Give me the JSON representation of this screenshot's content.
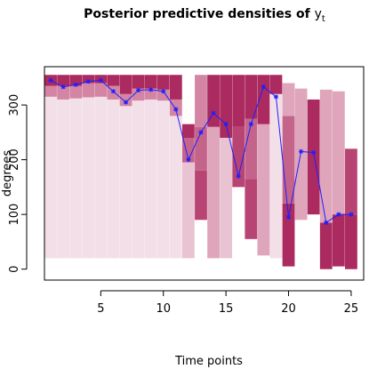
{
  "chart_data": {
    "type": "bar",
    "title": "Posterior predictive densities of ",
    "title_symbol": "y",
    "title_subscript": "t",
    "xlabel": "Time points",
    "ylabel": "degrees",
    "xlim": [
      0.5,
      26
    ],
    "ylim": [
      -20,
      370
    ],
    "x_ticks": [
      5,
      10,
      15,
      20,
      25
    ],
    "y_ticks": [
      0,
      100,
      200,
      300
    ],
    "grid": false,
    "colors": {
      "line": "#1f1fff",
      "marker": "#1f1fff",
      "band_shades": [
        "#f3dfe7",
        "#e9c3d1",
        "#dfa5bb",
        "#d385a3",
        "#c5648b",
        "#b84474",
        "#ab2a5f"
      ]
    },
    "bands": [
      {
        "x": 1,
        "segments": [
          [
            20,
            315,
            0
          ],
          [
            315,
            335,
            3
          ],
          [
            335,
            355,
            6
          ]
        ]
      },
      {
        "x": 2,
        "segments": [
          [
            20,
            310,
            0
          ],
          [
            310,
            335,
            3
          ],
          [
            335,
            355,
            6
          ]
        ]
      },
      {
        "x": 3,
        "segments": [
          [
            20,
            312,
            0
          ],
          [
            312,
            335,
            3
          ],
          [
            335,
            355,
            6
          ]
        ]
      },
      {
        "x": 4,
        "segments": [
          [
            20,
            314,
            0
          ],
          [
            314,
            340,
            3
          ],
          [
            340,
            355,
            6
          ]
        ]
      },
      {
        "x": 5,
        "segments": [
          [
            20,
            315,
            0
          ],
          [
            315,
            340,
            3
          ],
          [
            340,
            355,
            6
          ]
        ]
      },
      {
        "x": 6,
        "segments": [
          [
            20,
            310,
            0
          ],
          [
            310,
            335,
            3
          ],
          [
            335,
            355,
            6
          ]
        ]
      },
      {
        "x": 7,
        "segments": [
          [
            20,
            298,
            0
          ],
          [
            298,
            320,
            3
          ],
          [
            320,
            355,
            6
          ]
        ]
      },
      {
        "x": 8,
        "segments": [
          [
            20,
            308,
            0
          ],
          [
            308,
            330,
            3
          ],
          [
            330,
            355,
            6
          ]
        ]
      },
      {
        "x": 9,
        "segments": [
          [
            20,
            310,
            0
          ],
          [
            310,
            330,
            3
          ],
          [
            330,
            355,
            6
          ]
        ]
      },
      {
        "x": 10,
        "segments": [
          [
            20,
            308,
            0
          ],
          [
            308,
            328,
            3
          ],
          [
            328,
            355,
            6
          ]
        ]
      },
      {
        "x": 11,
        "segments": [
          [
            20,
            280,
            0
          ],
          [
            280,
            310,
            3
          ],
          [
            310,
            355,
            6
          ]
        ]
      },
      {
        "x": 12,
        "segments": [
          [
            20,
            195,
            1
          ],
          [
            195,
            240,
            4
          ],
          [
            240,
            265,
            6
          ]
        ]
      },
      {
        "x": 13,
        "segments": [
          [
            90,
            180,
            5
          ],
          [
            180,
            260,
            4
          ],
          [
            260,
            355,
            3
          ]
        ]
      },
      {
        "x": 14,
        "segments": [
          [
            20,
            260,
            2
          ],
          [
            260,
            355,
            6
          ]
        ]
      },
      {
        "x": 15,
        "segments": [
          [
            20,
            240,
            1
          ],
          [
            240,
            355,
            6
          ]
        ]
      },
      {
        "x": 16,
        "segments": [
          [
            150,
            260,
            5
          ],
          [
            260,
            355,
            6
          ]
        ]
      },
      {
        "x": 17,
        "segments": [
          [
            55,
            165,
            5
          ],
          [
            165,
            275,
            4
          ],
          [
            275,
            355,
            6
          ]
        ]
      },
      {
        "x": 18,
        "segments": [
          [
            25,
            265,
            2
          ],
          [
            265,
            355,
            6
          ]
        ]
      },
      {
        "x": 19,
        "segments": [
          [
            20,
            320,
            0
          ],
          [
            320,
            355,
            6
          ]
        ]
      },
      {
        "x": 20,
        "segments": [
          [
            5,
            120,
            6
          ],
          [
            120,
            280,
            4
          ],
          [
            280,
            340,
            2
          ]
        ]
      },
      {
        "x": 21,
        "segments": [
          [
            90,
            330,
            2
          ]
        ]
      },
      {
        "x": 22,
        "segments": [
          [
            100,
            310,
            6
          ]
        ]
      },
      {
        "x": 23,
        "segments": [
          [
            0,
            85,
            6
          ],
          [
            85,
            328,
            2
          ]
        ]
      },
      {
        "x": 24,
        "segments": [
          [
            5,
            100,
            6
          ],
          [
            100,
            325,
            2
          ]
        ]
      },
      {
        "x": 25,
        "segments": [
          [
            0,
            100,
            6
          ],
          [
            100,
            220,
            5
          ]
        ]
      }
    ],
    "series": [
      {
        "x": [
          1,
          2,
          3,
          4,
          5,
          6,
          7,
          8,
          9,
          10,
          11,
          12,
          13,
          14,
          15,
          16,
          17,
          18,
          19,
          20,
          21,
          22,
          23,
          24,
          25
        ],
        "values": [
          345,
          333,
          337,
          343,
          345,
          325,
          305,
          327,
          328,
          325,
          292,
          200,
          250,
          285,
          265,
          170,
          265,
          333,
          315,
          95,
          215,
          213,
          85,
          100,
          100
        ]
      }
    ]
  }
}
